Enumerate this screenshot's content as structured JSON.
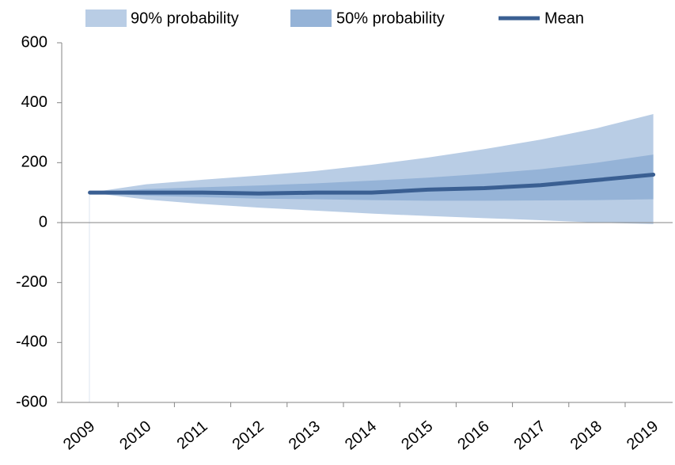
{
  "chart_data": {
    "type": "fan",
    "categories": [
      "2009",
      "2010",
      "2011",
      "2012",
      "2013",
      "2014",
      "2015",
      "2016",
      "2017",
      "2018",
      "2019"
    ],
    "series": [
      {
        "name": "90% probability",
        "color": "#b9cde5",
        "upper": [
          100,
          128,
          143,
          157,
          172,
          193,
          217,
          245,
          277,
          315,
          362
        ],
        "lower": [
          100,
          77,
          62,
          50,
          40,
          30,
          22,
          15,
          8,
          0,
          -5
        ]
      },
      {
        "name": "50% probability",
        "color": "#95b3d7",
        "upper": [
          100,
          112,
          118,
          124,
          131,
          140,
          150,
          163,
          178,
          200,
          227
        ],
        "lower": [
          100,
          90,
          85,
          80,
          78,
          75,
          73,
          73,
          74,
          75,
          78
        ]
      },
      {
        "name": "Mean",
        "color": "#3a5f92",
        "values": [
          100,
          100,
          100,
          97,
          100,
          100,
          110,
          115,
          125,
          142,
          160
        ]
      }
    ],
    "ylim": [
      -600,
      600
    ],
    "yticks": [
      -600,
      -400,
      -200,
      0,
      200,
      400,
      600
    ]
  }
}
